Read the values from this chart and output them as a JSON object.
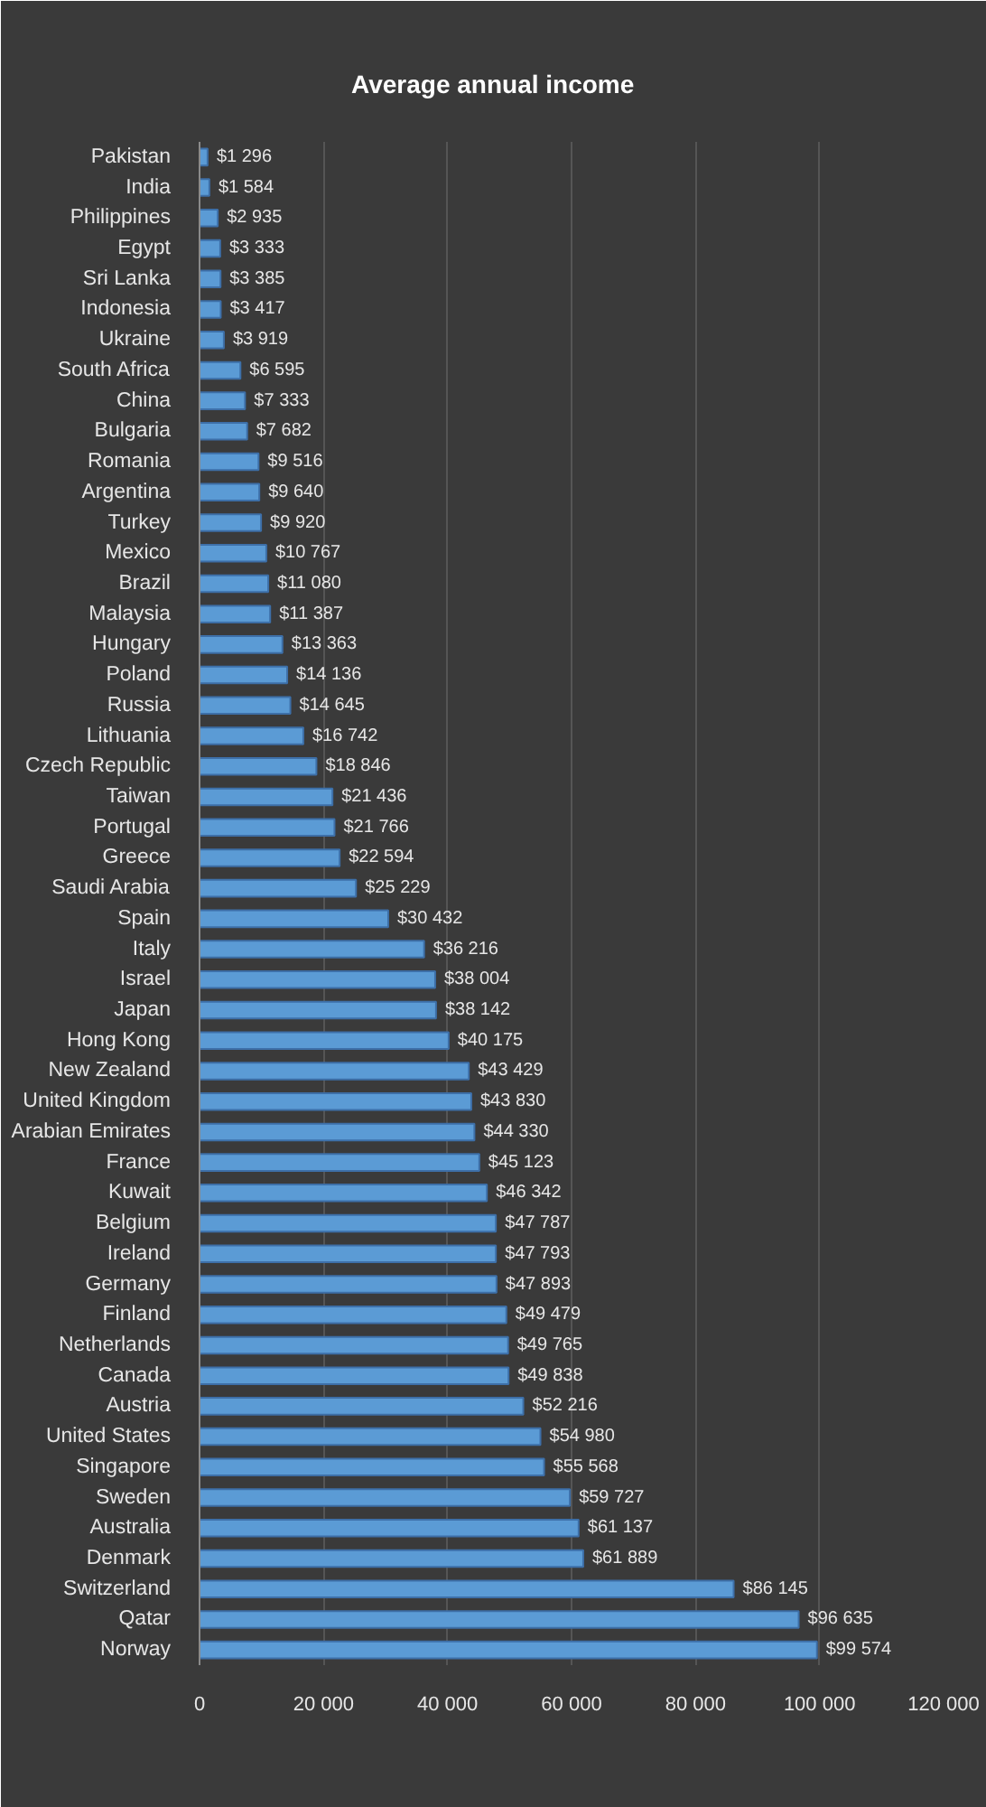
{
  "chart_data": {
    "type": "bar",
    "orientation": "horizontal",
    "title": "Average annual income",
    "categories": [
      "Pakistan",
      "India",
      "Philippines",
      "Egypt",
      "Sri Lanka",
      "Indonesia",
      "Ukraine",
      "South Africa",
      "China",
      "Bulgaria",
      "Romania",
      "Argentina",
      "Turkey",
      "Mexico",
      "Brazil",
      "Malaysia",
      "Hungary",
      "Poland",
      "Russia",
      "Lithuania",
      "Czech Republic",
      "Taiwan",
      "Portugal",
      "Greece",
      "Saudi Arabia",
      "Spain",
      "Italy",
      "Israel",
      "Japan",
      "Hong Kong",
      "New Zealand",
      "United Kingdom",
      "Arabian Emirates",
      "France",
      "Kuwait",
      "Belgium",
      "Ireland",
      "Germany",
      "Finland",
      "Netherlands",
      "Canada",
      "Austria",
      "United States",
      "Singapore",
      "Sweden",
      "Australia",
      "Denmark",
      "Switzerland",
      "Qatar",
      "Norway"
    ],
    "values": [
      1296,
      1584,
      2935,
      3333,
      3385,
      3417,
      3919,
      6595,
      7333,
      7682,
      9516,
      9640,
      9920,
      10767,
      11080,
      11387,
      13363,
      14136,
      14645,
      16742,
      18846,
      21436,
      21766,
      22594,
      25229,
      30432,
      36216,
      38004,
      38142,
      40175,
      43429,
      43830,
      44330,
      45123,
      46342,
      47787,
      47793,
      47893,
      49479,
      49765,
      49838,
      52216,
      54980,
      55568,
      59727,
      61137,
      61889,
      86145,
      96635,
      99574
    ],
    "value_labels": [
      "$1 296",
      "$1 584",
      "$2 935",
      "$3 333",
      "$3 385",
      "$3 417",
      "$3 919",
      "$6 595",
      "$7 333",
      "$7 682",
      "$9 516",
      "$9 640",
      "$9 920",
      "$10 767",
      "$11 080",
      "$11 387",
      "$13 363",
      "$14 136",
      "$14 645",
      "$16 742",
      "$18 846",
      "$21 436",
      "$21 766",
      "$22 594",
      "$25 229",
      "$30 432",
      "$36 216",
      "$38 004",
      "$38 142",
      "$40 175",
      "$43 429",
      "$43 830",
      "$44 330",
      "$45 123",
      "$46 342",
      "$47 787",
      "$47 793",
      "$47 893",
      "$49 479",
      "$49 765",
      "$49 838",
      "$52 216",
      "$54 980",
      "$55 568",
      "$59 727",
      "$61 137",
      "$61 889",
      "$86 145",
      "$96 635",
      "$99 574"
    ],
    "color": "#5b9bd5",
    "xlim": [
      0,
      120000
    ],
    "xticks": [
      0,
      {
        "value": 20000,
        "label": "20 000"
      },
      {
        "value": 40000,
        "label": "40 000"
      },
      {
        "value": 60000,
        "label": "60 000"
      },
      {
        "value": 80000,
        "label": "80 000"
      },
      {
        "value": 100000,
        "label": "100 000"
      },
      {
        "value": 120000,
        "label": "120 000"
      }
    ],
    "grid": "x"
  }
}
